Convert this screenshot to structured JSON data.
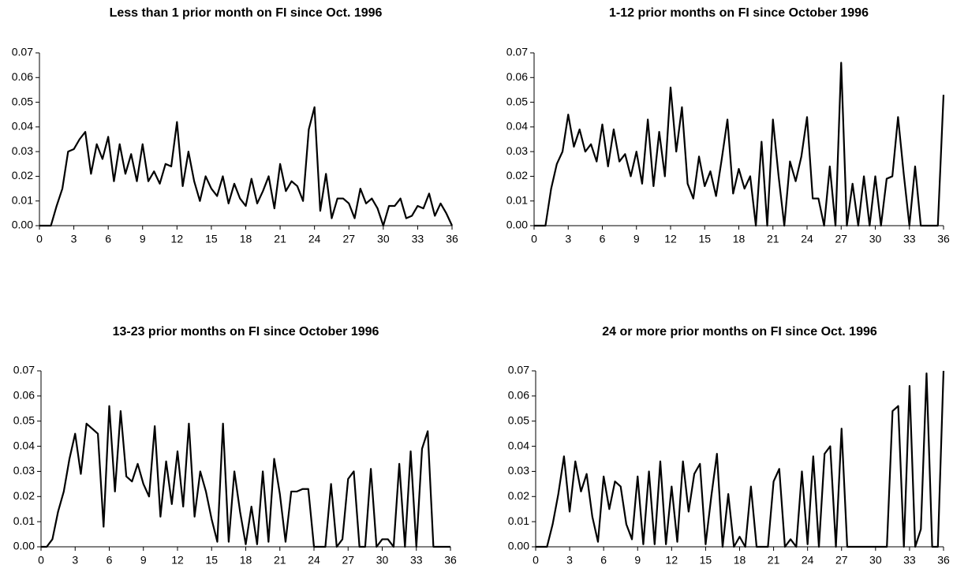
{
  "chart_data": [
    {
      "type": "line",
      "title": "Less than 1 prior month on FI since Oct. 1996",
      "color": "#000000",
      "x": [
        0,
        0.5,
        1,
        1.5,
        2,
        2.5,
        3,
        3.5,
        4,
        4.5,
        5,
        5.5,
        6,
        6.5,
        7,
        7.5,
        8,
        8.5,
        9,
        9.5,
        10,
        10.5,
        11,
        11.5,
        12,
        12.5,
        13,
        13.5,
        14,
        14.5,
        15,
        15.5,
        16,
        16.5,
        17,
        17.5,
        18,
        18.5,
        19,
        19.5,
        20,
        20.5,
        21,
        21.5,
        22,
        22.5,
        23,
        23.5,
        24,
        24.5,
        25,
        25.5,
        26,
        26.5,
        27,
        27.5,
        28,
        28.5,
        29,
        29.5,
        30,
        30.5,
        31,
        31.5,
        32,
        32.5,
        33,
        33.5,
        34,
        34.5,
        35,
        35.5,
        36
      ],
      "values": [
        0,
        0,
        0,
        0.008,
        0.015,
        0.03,
        0.031,
        0.035,
        0.038,
        0.021,
        0.033,
        0.027,
        0.036,
        0.018,
        0.033,
        0.021,
        0.029,
        0.018,
        0.033,
        0.018,
        0.022,
        0.017,
        0.025,
        0.024,
        0.042,
        0.016,
        0.03,
        0.018,
        0.01,
        0.02,
        0.015,
        0.012,
        0.02,
        0.009,
        0.017,
        0.011,
        0.008,
        0.019,
        0.009,
        0.014,
        0.02,
        0.007,
        0.025,
        0.014,
        0.018,
        0.016,
        0.01,
        0.039,
        0.048,
        0.006,
        0.021,
        0.003,
        0.011,
        0.011,
        0.009,
        0.003,
        0.015,
        0.009,
        0.011,
        0.007,
        0,
        0.008,
        0.008,
        0.011,
        0.003,
        0.004,
        0.008,
        0.007,
        0.013,
        0.004,
        0.009,
        0.005,
        0
      ],
      "xlim": [
        0,
        36
      ],
      "xticks": [
        0,
        3,
        6,
        9,
        12,
        15,
        18,
        21,
        24,
        27,
        30,
        33,
        36
      ],
      "ylim": [
        0,
        0.07
      ],
      "yticks": [
        {
          "value": 0,
          "label": "0.00"
        },
        {
          "value": 0.01,
          "label": "0.01"
        },
        {
          "value": 0.02,
          "label": "0.02"
        },
        {
          "value": 0.03,
          "label": "0.03"
        },
        {
          "value": 0.04,
          "label": "0.04"
        },
        {
          "value": 0.05,
          "label": "0.05"
        },
        {
          "value": 0.06,
          "label": "0.06"
        },
        {
          "value": 0.07,
          "label": "0.07"
        }
      ]
    },
    {
      "type": "line",
      "title": "1-12 prior months on FI since October 1996",
      "color": "#000000",
      "x": [
        0,
        0.5,
        1,
        1.5,
        2,
        2.5,
        3,
        3.5,
        4,
        4.5,
        5,
        5.5,
        6,
        6.5,
        7,
        7.5,
        8,
        8.5,
        9,
        9.5,
        10,
        10.5,
        11,
        11.5,
        12,
        12.5,
        13,
        13.5,
        14,
        14.5,
        15,
        15.5,
        16,
        16.5,
        17,
        17.5,
        18,
        18.5,
        19,
        19.5,
        20,
        20.5,
        21,
        21.5,
        22,
        22.5,
        23,
        23.5,
        24,
        24.5,
        25,
        25.5,
        26,
        26.5,
        27,
        27.5,
        28,
        28.5,
        29,
        29.5,
        30,
        30.5,
        31,
        31.5,
        32,
        32.5,
        33,
        33.5,
        34,
        34.5,
        35,
        35.5,
        36
      ],
      "values": [
        0,
        0,
        0,
        0.015,
        0.025,
        0.03,
        0.045,
        0.032,
        0.039,
        0.03,
        0.033,
        0.026,
        0.041,
        0.024,
        0.039,
        0.026,
        0.029,
        0.02,
        0.03,
        0.017,
        0.043,
        0.016,
        0.038,
        0.02,
        0.056,
        0.03,
        0.048,
        0.017,
        0.011,
        0.028,
        0.016,
        0.022,
        0.012,
        0.027,
        0.043,
        0.013,
        0.023,
        0.015,
        0.02,
        0,
        0.034,
        0,
        0.043,
        0.02,
        0,
        0.026,
        0.018,
        0.028,
        0.044,
        0.011,
        0.011,
        0,
        0.024,
        0,
        0.066,
        0,
        0.017,
        0,
        0.02,
        0,
        0.02,
        0,
        0.019,
        0.02,
        0.044,
        0.021,
        0,
        0.024,
        0,
        0,
        0,
        0,
        0.053
      ],
      "xlim": [
        0,
        36
      ],
      "xticks": [
        0,
        3,
        6,
        9,
        12,
        15,
        18,
        21,
        24,
        27,
        30,
        33,
        36
      ],
      "ylim": [
        0,
        0.07
      ],
      "yticks": [
        {
          "value": 0,
          "label": "0.00"
        },
        {
          "value": 0.01,
          "label": "0.01"
        },
        {
          "value": 0.02,
          "label": "0.02"
        },
        {
          "value": 0.03,
          "label": "0.03"
        },
        {
          "value": 0.04,
          "label": "0.04"
        },
        {
          "value": 0.05,
          "label": "0.05"
        },
        {
          "value": 0.06,
          "label": "0.06"
        },
        {
          "value": 0.07,
          "label": "0.07"
        }
      ]
    },
    {
      "type": "line",
      "title": "13-23 prior months on FI since October 1996",
      "color": "#000000",
      "x": [
        0,
        0.5,
        1,
        1.5,
        2,
        2.5,
        3,
        3.5,
        4,
        4.5,
        5,
        5.5,
        6,
        6.5,
        7,
        7.5,
        8,
        8.5,
        9,
        9.5,
        10,
        10.5,
        11,
        11.5,
        12,
        12.5,
        13,
        13.5,
        14,
        14.5,
        15,
        15.5,
        16,
        16.5,
        17,
        17.5,
        18,
        18.5,
        19,
        19.5,
        20,
        20.5,
        21,
        21.5,
        22,
        22.5,
        23,
        23.5,
        24,
        24.5,
        25,
        25.5,
        26,
        26.5,
        27,
        27.5,
        28,
        28.5,
        29,
        29.5,
        30,
        30.5,
        31,
        31.5,
        32,
        32.5,
        33,
        33.5,
        34,
        34.5,
        35,
        35.5,
        36
      ],
      "values": [
        0,
        0,
        0.003,
        0.014,
        0.022,
        0.035,
        0.045,
        0.029,
        0.049,
        0.047,
        0.045,
        0.008,
        0.056,
        0.022,
        0.054,
        0.028,
        0.026,
        0.033,
        0.025,
        0.02,
        0.048,
        0.012,
        0.034,
        0.017,
        0.038,
        0.016,
        0.049,
        0.012,
        0.03,
        0.022,
        0.011,
        0.002,
        0.049,
        0.002,
        0.03,
        0.014,
        0.001,
        0.016,
        0.001,
        0.03,
        0.002,
        0.035,
        0.021,
        0.002,
        0.022,
        0.022,
        0.023,
        0.023,
        0,
        0,
        0,
        0.025,
        0,
        0.003,
        0.027,
        0.03,
        0,
        0,
        0.031,
        0,
        0.003,
        0.003,
        0,
        0.033,
        0,
        0.038,
        0,
        0.039,
        0.046,
        0,
        0,
        0,
        0
      ],
      "xlim": [
        0,
        36
      ],
      "xticks": [
        0,
        3,
        6,
        9,
        12,
        15,
        18,
        21,
        24,
        27,
        30,
        33,
        36
      ],
      "ylim": [
        0,
        0.07
      ],
      "yticks": [
        {
          "value": 0,
          "label": "0.00"
        },
        {
          "value": 0.01,
          "label": "0.01"
        },
        {
          "value": 0.02,
          "label": "0.02"
        },
        {
          "value": 0.03,
          "label": "0.03"
        },
        {
          "value": 0.04,
          "label": "0.04"
        },
        {
          "value": 0.05,
          "label": "0.05"
        },
        {
          "value": 0.06,
          "label": "0.06"
        },
        {
          "value": 0.07,
          "label": "0.07"
        }
      ]
    },
    {
      "type": "line",
      "title": "24 or more prior months on FI since Oct. 1996",
      "color": "#000000",
      "x": [
        0,
        0.5,
        1,
        1.5,
        2,
        2.5,
        3,
        3.5,
        4,
        4.5,
        5,
        5.5,
        6,
        6.5,
        7,
        7.5,
        8,
        8.5,
        9,
        9.5,
        10,
        10.5,
        11,
        11.5,
        12,
        12.5,
        13,
        13.5,
        14,
        14.5,
        15,
        15.5,
        16,
        16.5,
        17,
        17.5,
        18,
        18.5,
        19,
        19.5,
        20,
        20.5,
        21,
        21.5,
        22,
        22.5,
        23,
        23.5,
        24,
        24.5,
        25,
        25.5,
        26,
        26.5,
        27,
        27.5,
        28,
        28.5,
        29,
        29.5,
        30,
        30.5,
        31,
        31.5,
        32,
        32.5,
        33,
        33.5,
        34,
        34.5,
        35,
        35.5,
        36
      ],
      "values": [
        0,
        0,
        0,
        0.009,
        0.021,
        0.036,
        0.014,
        0.034,
        0.022,
        0.029,
        0.012,
        0.002,
        0.028,
        0.015,
        0.026,
        0.024,
        0.009,
        0.003,
        0.028,
        0.001,
        0.03,
        0.001,
        0.034,
        0.001,
        0.024,
        0.002,
        0.034,
        0.014,
        0.029,
        0.033,
        0.001,
        0.02,
        0.037,
        0,
        0.021,
        0,
        0.004,
        0,
        0.024,
        0,
        0,
        0,
        0.026,
        0.031,
        0,
        0.003,
        0,
        0.03,
        0.001,
        0.036,
        0,
        0.037,
        0.04,
        0,
        0.047,
        0,
        0,
        0,
        0,
        0,
        0,
        0,
        0,
        0.054,
        0.056,
        0,
        0.064,
        0,
        0.007,
        0.069,
        0,
        0,
        0.07
      ],
      "xlim": [
        0,
        36
      ],
      "xticks": [
        0,
        3,
        6,
        9,
        12,
        15,
        18,
        21,
        24,
        27,
        30,
        33,
        36
      ],
      "ylim": [
        0,
        0.07
      ],
      "yticks": [
        {
          "value": 0,
          "label": "0.00"
        },
        {
          "value": 0.01,
          "label": "0.01"
        },
        {
          "value": 0.02,
          "label": "0.02"
        },
        {
          "value": 0.03,
          "label": "0.03"
        },
        {
          "value": 0.04,
          "label": "0.04"
        },
        {
          "value": 0.05,
          "label": "0.05"
        },
        {
          "value": 0.06,
          "label": "0.06"
        },
        {
          "value": 0.07,
          "label": "0.07"
        }
      ]
    }
  ]
}
